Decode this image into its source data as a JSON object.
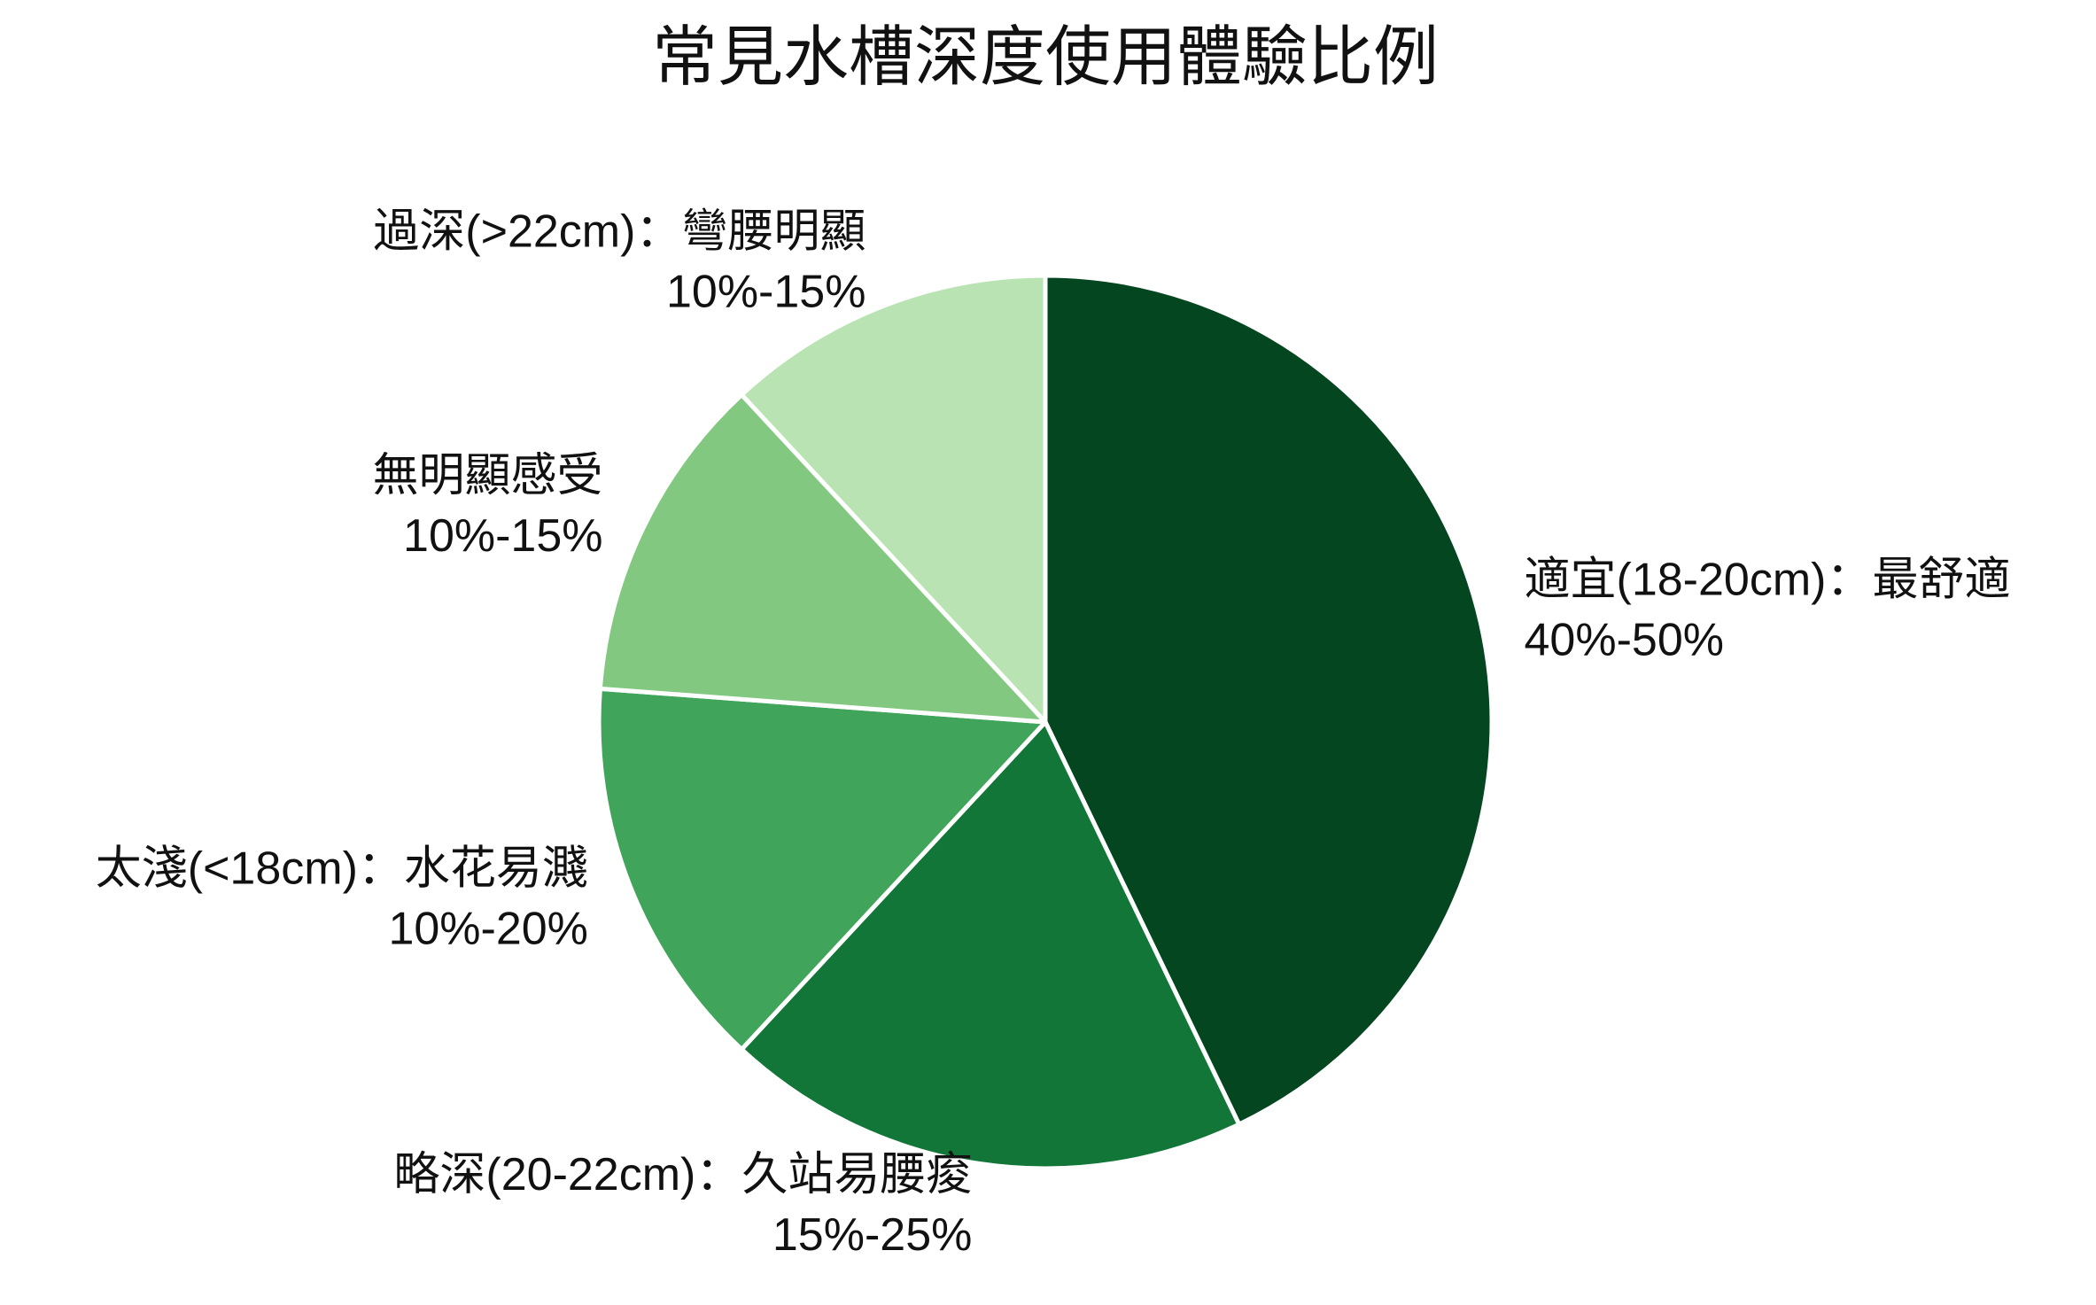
{
  "chart_data": {
    "type": "pie",
    "title": "常見水槽深度使用體驗比例",
    "categories": [
      "適宜(18-20cm)：最舒適",
      "略深(20-22cm)：久站易腰痠",
      "太淺(<18cm)：水花易濺",
      "無明顯感受",
      "過深(>22cm)：彎腰明顯"
    ],
    "values": [
      45,
      20,
      15,
      12.5,
      12.5
    ],
    "value_labels": [
      "40%-50%",
      "15%-25%",
      "10%-20%",
      "10%-15%",
      "10%-15%"
    ],
    "colors": [
      "#03461f",
      "#117637",
      "#40a45a",
      "#82c880",
      "#b9e3b3"
    ]
  }
}
